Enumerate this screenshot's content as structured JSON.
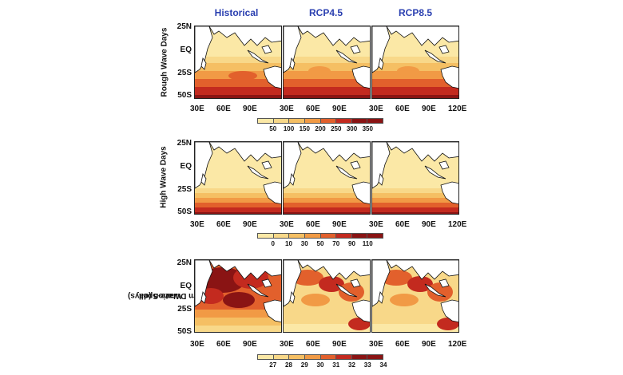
{
  "columns": [
    "Historical",
    "RCP4.5",
    "RCP8.5"
  ],
  "rows": [
    {
      "label_lines": [
        "Rough Wave Days"
      ],
      "lat_labels": [
        "25N",
        "EQ",
        "25S",
        "50S"
      ],
      "lon_labels": [
        "30E",
        "60E",
        "90E",
        "120E"
      ],
      "colorbar_ticks": [
        "50",
        "100",
        "150",
        "200",
        "250",
        "300",
        "350"
      ],
      "colors": [
        "#fbe8a6",
        "#f8d889",
        "#f5bf63",
        "#f19a45",
        "#e2602c",
        "#c32a1f",
        "#8a1414"
      ]
    },
    {
      "label_lines": [
        "High Wave Days"
      ],
      "lat_labels": [
        "25N",
        "EQ",
        "25S",
        "50S"
      ],
      "lon_labels": [
        "30E",
        "60E",
        "90E",
        "120E"
      ],
      "colorbar_ticks": [
        "0",
        "10",
        "30",
        "50",
        "70",
        "90",
        "110"
      ],
      "colors": [
        "#fbe8a6",
        "#f8d889",
        "#f5bf63",
        "#f19a45",
        "#e2602c",
        "#c32a1f",
        "#8a1414"
      ]
    },
    {
      "label_lines": [
        "Wave-Spell",
        "Storm Duration (days)"
      ],
      "lat_labels": [
        "25N",
        "EQ",
        "25S",
        "50S"
      ],
      "lon_labels": [
        "30E",
        "60E",
        "90E",
        "120E"
      ],
      "colorbar_ticks": [
        "27",
        "28",
        "29",
        "30",
        "31",
        "32",
        "33",
        "34"
      ],
      "colors": [
        "#fbe8a6",
        "#f8d889",
        "#f5bf63",
        "#f19a45",
        "#e2602c",
        "#c32a1f",
        "#8a1414"
      ]
    }
  ],
  "land_color": "#ffffff",
  "coast_color": "#111111"
}
